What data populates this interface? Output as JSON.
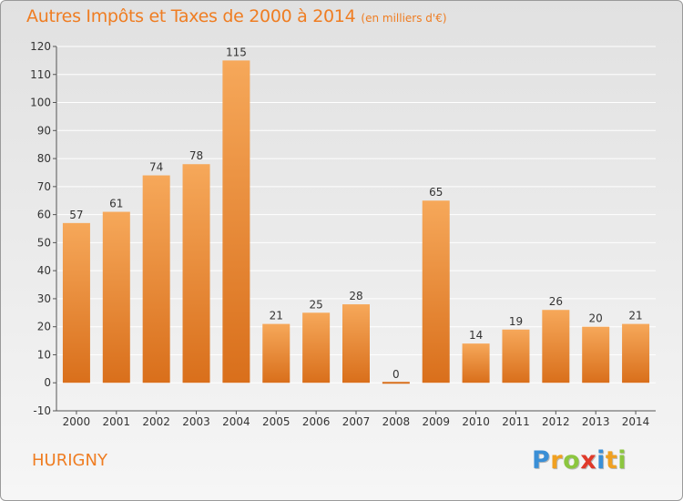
{
  "title": "Autres Impôts et Taxes de 2000 à 2014",
  "subtitle": "(en milliers d'€)",
  "commune": "HURIGNY",
  "logo": {
    "letters": [
      {
        "ch": "P",
        "color": "#3a8fd6"
      },
      {
        "ch": "r",
        "color": "#f0a020"
      },
      {
        "ch": "o",
        "color": "#8cc63f"
      },
      {
        "ch": "x",
        "color": "#e03a2a"
      },
      {
        "ch": "i",
        "color": "#3a8fd6"
      },
      {
        "ch": "t",
        "color": "#f0a020"
      },
      {
        "ch": "i",
        "color": "#8cc63f"
      }
    ]
  },
  "colors": {
    "accent": "#ef7d22",
    "bar_top": "#f6a85a",
    "bar_bottom": "#d96f1b",
    "grid": "#ffffff",
    "axis": "#555555"
  },
  "chart_data": {
    "type": "bar",
    "title": "Autres Impôts et Taxes de 2000 à 2014",
    "subtitle": "(en milliers d'€)",
    "xlabel": "",
    "ylabel": "",
    "categories": [
      "2000",
      "2001",
      "2002",
      "2003",
      "2004",
      "2005",
      "2006",
      "2007",
      "2008",
      "2009",
      "2010",
      "2011",
      "2012",
      "2013",
      "2014"
    ],
    "values": [
      57,
      61,
      74,
      78,
      115,
      21,
      25,
      28,
      0,
      65,
      14,
      19,
      26,
      20,
      21
    ],
    "ylim": [
      -10,
      120
    ],
    "yticks": [
      -10,
      0,
      10,
      20,
      30,
      40,
      50,
      60,
      70,
      80,
      90,
      100,
      110,
      120
    ],
    "grid": true,
    "legend": "none"
  }
}
